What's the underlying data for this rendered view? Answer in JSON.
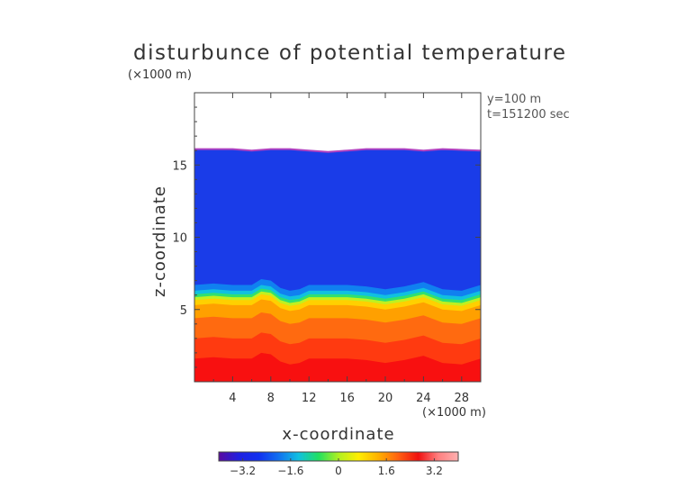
{
  "chart_data": {
    "type": "heatmap",
    "title": "disturbunce of potential temperature",
    "annotations": [
      "y=100 m",
      "t=151200 sec"
    ],
    "xlabel": "x-coordinate",
    "x_unit": "(×1000 m)",
    "ylabel": "z-coordinate",
    "y_unit": "(×1000 m)",
    "xlim": [
      0,
      30
    ],
    "ylim": [
      0,
      20
    ],
    "x_ticks": [
      4,
      8,
      12,
      16,
      20,
      24,
      28
    ],
    "x_tick_labels": [
      "4",
      "8",
      "12",
      "16",
      "20",
      "24",
      "28"
    ],
    "y_ticks": [
      5,
      10,
      15
    ],
    "y_tick_labels": [
      "5",
      "10",
      "15"
    ],
    "field_top_z": [
      16.1,
      16.1,
      16.1,
      16.0,
      16.1,
      16.1,
      16.0,
      15.9,
      16.0,
      16.1,
      16.1,
      16.1,
      16.0,
      16.1,
      16.0
    ],
    "field_top_x": [
      0,
      2,
      4,
      6,
      8,
      10,
      12,
      14,
      16,
      18,
      20,
      22,
      24,
      26,
      30
    ],
    "transition_z_x": [
      0,
      2,
      4,
      6,
      7,
      8,
      9,
      10,
      11,
      12,
      14,
      16,
      18,
      20,
      22,
      24,
      26,
      28,
      30
    ],
    "transition_z": [
      5.6,
      5.7,
      5.6,
      5.6,
      6.0,
      5.9,
      5.4,
      5.2,
      5.3,
      5.6,
      5.6,
      5.6,
      5.5,
      5.3,
      5.5,
      5.8,
      5.3,
      5.2,
      5.6
    ],
    "colorbar": {
      "vmin": -4,
      "vmax": 4,
      "ticks": [
        -3.2,
        -1.6,
        0,
        1.6,
        3.2
      ],
      "tick_labels": [
        "−3.2",
        "−1.6",
        "0",
        "1.6",
        "3.2"
      ],
      "colors": [
        "#5a0aa0",
        "#2020e0",
        "#1030f0",
        "#1070f0",
        "#10c0e0",
        "#20e060",
        "#b0f020",
        "#ffee00",
        "#ffb000",
        "#ff6010",
        "#f01010",
        "#ff8080",
        "#ffb0b0"
      ]
    },
    "grid": false,
    "legend": "bottom"
  }
}
